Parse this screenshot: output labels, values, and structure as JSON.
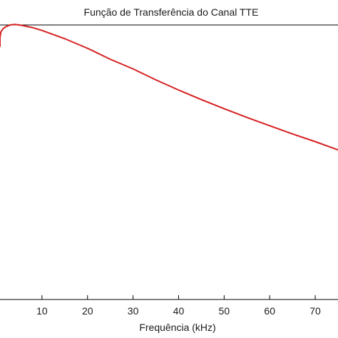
{
  "chart_data": {
    "type": "line",
    "title": "Função de Transferência do Canal TTE",
    "xlabel": "Frequência (kHz)",
    "ylabel": "",
    "xlim": [
      0,
      75
    ],
    "ylim": [
      0,
      1
    ],
    "xticks": [
      10,
      20,
      30,
      40,
      50,
      60,
      70
    ],
    "grid": false,
    "series": [
      {
        "color": "#d62020",
        "x": [
          0.0,
          0.5,
          1,
          1.5,
          2,
          3,
          4,
          5,
          6,
          8,
          10,
          15,
          20,
          25,
          30,
          35,
          40,
          45,
          50,
          55,
          60,
          65,
          70,
          75
        ],
        "y": [
          0.92,
          0.955,
          0.976,
          0.987,
          0.993,
          1.0,
          1.002,
          1.0,
          0.997,
          0.99,
          0.98,
          0.95,
          0.915,
          0.875,
          0.84,
          0.8,
          0.763,
          0.728,
          0.695,
          0.663,
          0.633,
          0.603,
          0.575,
          0.545
        ]
      }
    ]
  }
}
